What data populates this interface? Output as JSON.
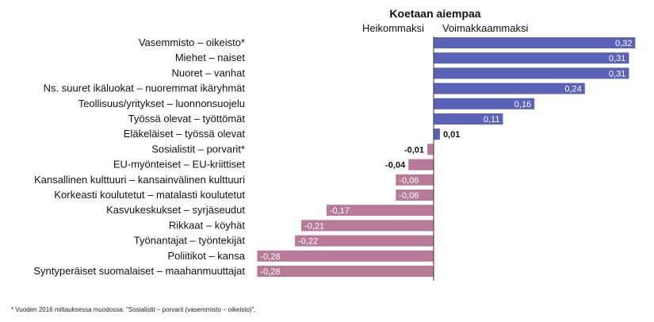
{
  "chart_data": {
    "type": "bar",
    "orientation": "horizontal",
    "title": "Koetaan aiempaa",
    "left_label": "Heikommaksi",
    "right_label": "Voimakkaammaksi",
    "categories": [
      "Vasemmisto – oikeisto*",
      "Miehet – naiset",
      "Nuoret – vanhat",
      "Ns. suuret ikäluokat – nuoremmat ikäryhmät",
      "Teollisuus/yritykset – luonnonsuojelu",
      "Työssä olevat – työttömät",
      "Eläkeläiset – työssä olevat",
      "Sosialistit – porvarit*",
      "EU-myönteiset – EU-kriittiset",
      "Kansallinen kulttuuri – kansainvälinen kulttuuri",
      "Korkeasti koulutetut – matalasti koulutetut",
      "Kasvukeskukset – syrjäseudut",
      "Rikkaat – köyhät",
      "Työnantajat – työntekijät",
      "Poliitikot – kansa",
      "Syntyperäiset suomalaiset – maahanmuuttajat"
    ],
    "values": [
      0.32,
      0.31,
      0.31,
      0.24,
      0.16,
      0.11,
      0.01,
      -0.01,
      -0.04,
      -0.06,
      -0.06,
      -0.17,
      -0.21,
      -0.22,
      -0.28,
      -0.28
    ],
    "value_labels": [
      "0,32",
      "0,31",
      "0,31",
      "0,24",
      "0,16",
      "0,11",
      "0,01",
      "-0,01",
      "-0,04",
      "-0,06",
      "-0,06",
      "-0,17",
      "-0,21",
      "-0,22",
      "-0,28",
      "-0,28"
    ],
    "xlim": [
      -0.28,
      0.32
    ],
    "colors": {
      "positive": "#5a63b8",
      "negative": "#b87a98",
      "axis": "#333333"
    }
  },
  "footnote": "* Vuoden 2016 mittauksessa muodossa: \"Sosialistit – porvarit (vasemmisto – oikeisto)\"."
}
